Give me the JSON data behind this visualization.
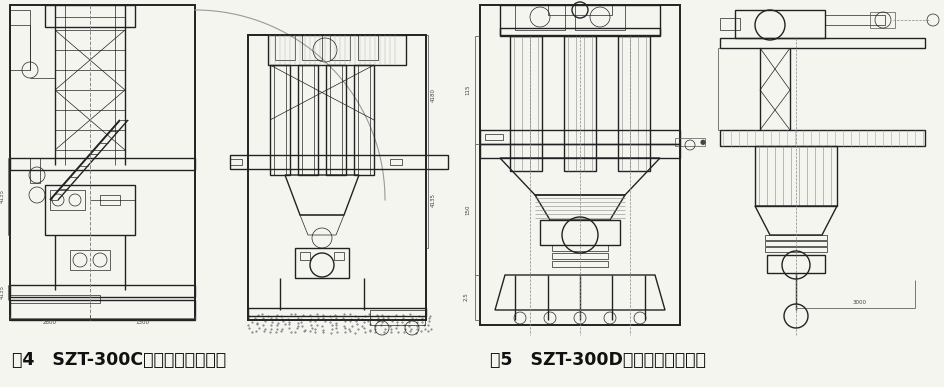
{
  "fig_width": 9.44,
  "fig_height": 3.87,
  "dpi": 100,
  "bg_color": "#f5f5f0",
  "left_caption": "图4   SZT-300C型库侧熟料装车机",
  "right_caption": "图5   SZT-300D型库底熟料装车机",
  "caption_fontsize": 12.5,
  "caption_fontweight": "bold",
  "text_color": "#111111",
  "line_color": "#222222",
  "dim_color": "#444444",
  "lw_main": 1.0,
  "lw_thin": 0.5,
  "lw_thick": 1.4
}
